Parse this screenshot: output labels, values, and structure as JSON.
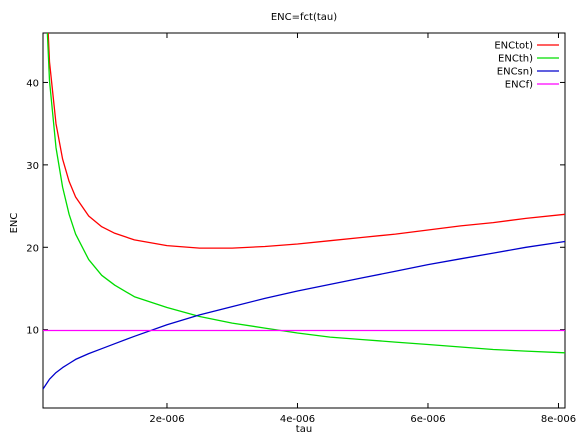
{
  "chart_data": {
    "type": "line",
    "title": "ENC=fct(tau)",
    "xlabel": "tau",
    "ylabel": "ENC",
    "xlim": [
      1e-07,
      8.1e-06
    ],
    "ylim": [
      0.5,
      46
    ],
    "x_ticks": [
      {
        "value": 2e-06,
        "label": "2e-006"
      },
      {
        "value": 4e-06,
        "label": "4e-006"
      },
      {
        "value": 6e-06,
        "label": "6e-006"
      },
      {
        "value": 8e-06,
        "label": "8e-006"
      }
    ],
    "y_ticks": [
      {
        "value": 10,
        "label": "10"
      },
      {
        "value": 20,
        "label": "20"
      },
      {
        "value": 30,
        "label": "30"
      },
      {
        "value": 40,
        "label": "40"
      }
    ],
    "grid": false,
    "legend_position": "top-right",
    "x": [
      1e-07,
      2e-07,
      3e-07,
      4e-07,
      5e-07,
      6e-07,
      8e-07,
      1e-06,
      1.2e-06,
      1.5e-06,
      2e-06,
      2.5e-06,
      3e-06,
      3.5e-06,
      4e-06,
      4.5e-06,
      5e-06,
      5.5e-06,
      6e-06,
      6.5e-06,
      7e-06,
      7.5e-06,
      8.1e-06
    ],
    "series": [
      {
        "name": "ENCtot)",
        "color": "#ff0000",
        "values": [
          60.0,
          42.5,
          35.0,
          30.7,
          28.0,
          26.1,
          23.8,
          22.5,
          21.7,
          20.9,
          20.2,
          19.9,
          19.9,
          20.1,
          20.4,
          20.8,
          21.2,
          21.6,
          22.1,
          22.6,
          23.0,
          23.5,
          24.0
        ]
      },
      {
        "name": "ENCth)",
        "color": "#00dd00",
        "values": [
          58.0,
          40.2,
          32.1,
          27.3,
          24.0,
          21.6,
          18.5,
          16.6,
          15.4,
          14.0,
          12.7,
          11.6,
          10.8,
          10.2,
          9.6,
          9.1,
          8.8,
          8.5,
          8.2,
          7.9,
          7.6,
          7.4,
          7.2
        ]
      },
      {
        "name": "ENCsn)",
        "color": "#0000cc",
        "values": [
          2.8,
          4.0,
          4.8,
          5.4,
          5.9,
          6.4,
          7.1,
          7.7,
          8.3,
          9.2,
          10.6,
          11.8,
          12.8,
          13.8,
          14.7,
          15.5,
          16.3,
          17.1,
          17.9,
          18.6,
          19.3,
          20.0,
          20.7
        ]
      },
      {
        "name": "ENCf)",
        "color": "#ff00ff",
        "values": [
          9.9,
          9.9,
          9.9,
          9.9,
          9.9,
          9.9,
          9.9,
          9.9,
          9.9,
          9.9,
          9.9,
          9.9,
          9.9,
          9.9,
          9.9,
          9.9,
          9.9,
          9.9,
          9.9,
          9.9,
          9.9,
          9.9,
          9.9
        ]
      }
    ]
  }
}
